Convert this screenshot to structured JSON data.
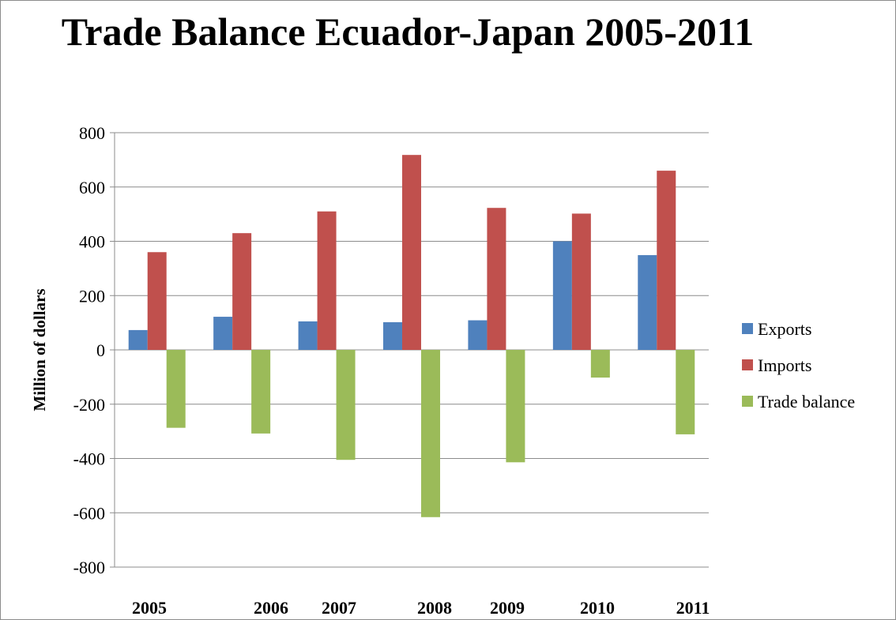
{
  "chart_data": {
    "type": "bar",
    "title": "Trade Balance Ecuador-Japan 2005-2011",
    "xlabel": "",
    "ylabel": "Million of dollars",
    "ylim": [
      -800,
      800
    ],
    "yticks": [
      800,
      600,
      400,
      200,
      0,
      -200,
      -400,
      -600,
      -800
    ],
    "categories": [
      "2005",
      "2006",
      "2007",
      "2008",
      "2009",
      "2010",
      "2011"
    ],
    "series": [
      {
        "name": "Exports",
        "color": "#4f81bd",
        "values": [
          73,
          122,
          105,
          102,
          109,
          400,
          349
        ]
      },
      {
        "name": "Imports",
        "color": "#c0504d",
        "values": [
          360,
          430,
          510,
          718,
          523,
          502,
          660
        ]
      },
      {
        "name": "Trade balance",
        "color": "#9bbb59",
        "values": [
          -287,
          -308,
          -405,
          -616,
          -414,
          -102,
          -311
        ]
      }
    ],
    "grid": true,
    "legend_position": "right"
  }
}
